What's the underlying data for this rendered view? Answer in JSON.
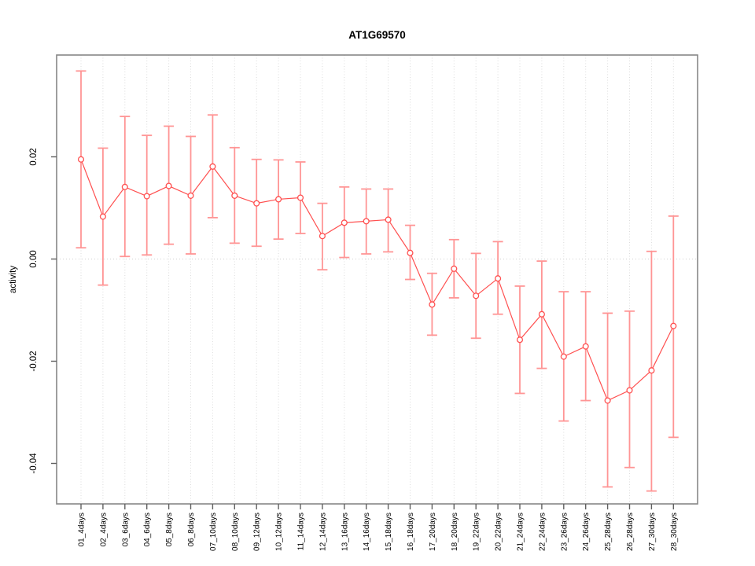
{
  "figure": {
    "title": "AT1G69570",
    "background_color": "#ffffff"
  },
  "chart_data": {
    "type": "line",
    "title": "AT1G69570",
    "xlabel": "",
    "ylabel": "activity",
    "legend": "none",
    "marker": "open-circle",
    "error_bars": true,
    "grid": {
      "vertical_dotted_per_category": true,
      "horizontal_zero_line_dotted": true
    },
    "categories": [
      "01_4days",
      "02_4days",
      "03_6days",
      "04_6days",
      "05_8days",
      "06_8days",
      "07_10days",
      "08_10days",
      "09_12days",
      "10_12days",
      "11_14days",
      "12_14days",
      "13_16days",
      "14_16days",
      "15_18days",
      "16_18days",
      "17_20days",
      "18_20days",
      "19_22days",
      "20_22days",
      "21_24days",
      "22_24days",
      "23_26days",
      "24_26days",
      "25_28days",
      "26_28days",
      "27_30days",
      "28_30days"
    ],
    "series": [
      {
        "name": "activity",
        "values": [
          0.0195,
          0.0083,
          0.0141,
          0.0123,
          0.0143,
          0.0124,
          0.0181,
          0.0124,
          0.0109,
          0.0117,
          0.012,
          0.0045,
          0.0071,
          0.0074,
          0.0077,
          0.0012,
          -0.0089,
          -0.0019,
          -0.0072,
          -0.0038,
          -0.0158,
          -0.0108,
          -0.0191,
          -0.0171,
          -0.0277,
          -0.0257,
          -0.0218,
          -0.0131
        ],
        "error_high": [
          0.0368,
          0.0217,
          0.0279,
          0.0242,
          0.026,
          0.024,
          0.0282,
          0.0218,
          0.0195,
          0.0194,
          0.019,
          0.0109,
          0.0141,
          0.0137,
          0.0137,
          0.0066,
          -0.0028,
          0.0038,
          0.0011,
          0.0034,
          -0.0053,
          -0.0004,
          -0.0064,
          -0.0064,
          -0.0106,
          -0.0102,
          0.0015,
          0.0084
        ],
        "error_low": [
          0.0022,
          -0.0051,
          0.0005,
          0.0008,
          0.0029,
          0.001,
          0.0081,
          0.0031,
          0.0025,
          0.0039,
          0.005,
          -0.0021,
          0.0003,
          0.001,
          0.0014,
          -0.004,
          -0.0149,
          -0.0076,
          -0.0155,
          -0.0108,
          -0.0263,
          -0.0214,
          -0.0317,
          -0.0277,
          -0.0446,
          -0.0408,
          -0.0454,
          -0.0349
        ]
      }
    ],
    "yticks": [
      0.02,
      0,
      -0.02,
      -0.04
    ],
    "ytick_labels": [
      "0.02",
      "0.00",
      "-0.02",
      "-0.04"
    ],
    "ylim": [
      -0.049,
      0.04
    ],
    "colors": {
      "series_line": "#ff5050",
      "marker": "#ff5050",
      "error_bar": "#ff9595",
      "grid": "#dcdcdc",
      "zero_line": "#d0d0d0",
      "box": "#878787",
      "tick": "#606060",
      "text": "#000000",
      "background": "#ffffff"
    }
  }
}
